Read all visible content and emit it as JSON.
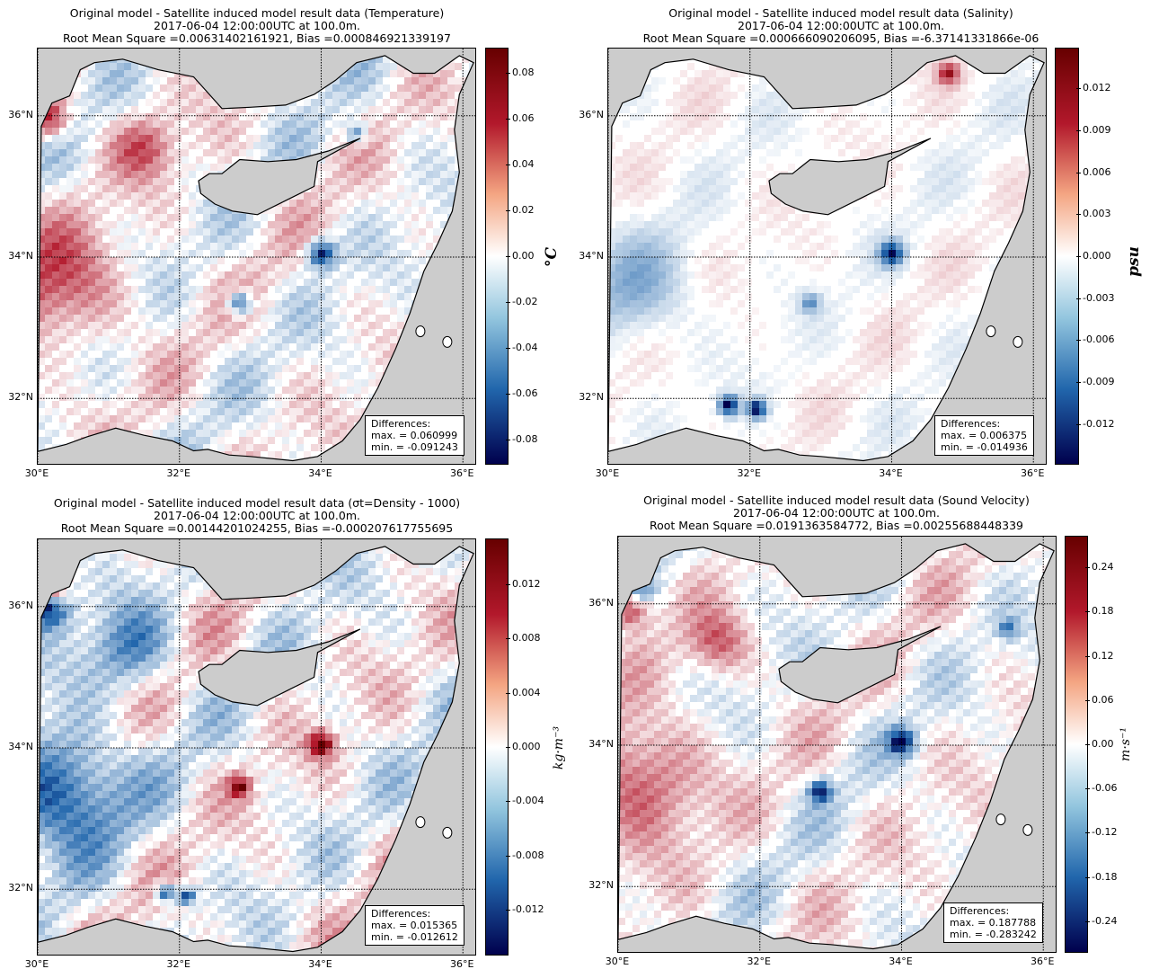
{
  "colors": {
    "land": "#cccccc",
    "sea_base": "#ffffff",
    "pos": "#b2182b",
    "neg": "#2166ac",
    "dark_pos": "#670000",
    "dark_neg": "#00004d"
  },
  "common": {
    "lat_labels": [
      "36°N",
      "34°N",
      "32°N"
    ],
    "lon_labels": [
      "30°E",
      "32°E",
      "34°E",
      "36°E"
    ],
    "stats_heading": "Differences:"
  },
  "panels": [
    {
      "id": "temperature",
      "title": "Original model - Satellite induced model result data (Temperature)",
      "date_line": "2017-06-04 12:00:00UTC at 100.0m.",
      "rms_line": "Root Mean Square =0.00631402161921, Bias =0.000846921339197",
      "unit": "°C",
      "colorbar_ticks": [
        "0.08",
        "0.06",
        "0.04",
        "0.02",
        "0.00",
        "-0.02",
        "-0.04",
        "-0.06",
        "-0.08"
      ],
      "colorbar_range": [
        -0.091,
        0.091
      ],
      "stats_max": "max. = 0.060999",
      "stats_min": "min. = -0.091243"
    },
    {
      "id": "salinity",
      "title": "Original model - Satellite induced model result data (Salinity)",
      "date_line": "2017-06-04 12:00:00UTC at 100.0m.",
      "rms_line": "Root Mean Square =0.000666090206095, Bias =-6.37141331866e-06",
      "unit": "psu",
      "colorbar_ticks": [
        "0.012",
        "0.009",
        "0.006",
        "0.003",
        "0.000",
        "-0.003",
        "-0.006",
        "-0.009",
        "-0.012"
      ],
      "colorbar_range": [
        -0.0149,
        0.0149
      ],
      "stats_max": "max. = 0.006375",
      "stats_min": "min. = -0.014936"
    },
    {
      "id": "density",
      "title": "Original model - Satellite induced model result data (σt=Density - 1000)",
      "date_line": "2017-06-04 12:00:00UTC at 100.0m.",
      "rms_line": "Root Mean Square =0.00144201024255, Bias =-0.000207617755695",
      "unit": "kg·m⁻³",
      "colorbar_ticks": [
        "0.012",
        "0.008",
        "0.004",
        "0.000",
        "-0.004",
        "-0.008",
        "-0.012"
      ],
      "colorbar_range": [
        -0.0154,
        0.0154
      ],
      "stats_max": "max. = 0.015365",
      "stats_min": "min. = -0.012612"
    },
    {
      "id": "sound-velocity",
      "title": "Original model - Satellite induced model result data (Sound Velocity)",
      "date_line": "2017-06-04 12:00:00UTC at 100.0m.",
      "rms_line": "Root Mean Square =0.0191363584772, Bias =0.00255688448339",
      "unit": "m·s⁻¹",
      "colorbar_ticks": [
        "0.24",
        "0.18",
        "0.12",
        "0.06",
        "0.00",
        "-0.06",
        "-0.12",
        "-0.18",
        "-0.24"
      ],
      "colorbar_range": [
        -0.283,
        0.283
      ],
      "stats_max": "max. = 0.187788",
      "stats_min": "min. = -0.283242"
    }
  ]
}
